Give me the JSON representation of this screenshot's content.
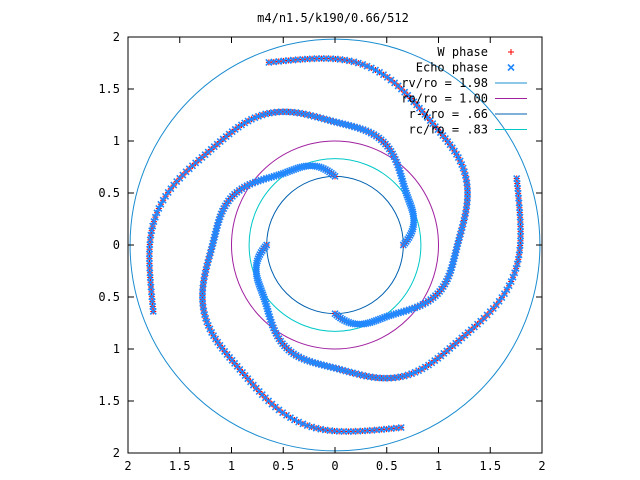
{
  "chart_data": {
    "type": "scatter",
    "title": "m4/n1.5/k190/0.66/512",
    "xlim": [
      -2,
      2
    ],
    "ylim": [
      -2,
      2
    ],
    "xticks": [
      {
        "v": -2,
        "label": "2"
      },
      {
        "v": -1.5,
        "label": "1.5"
      },
      {
        "v": -1,
        "label": "1"
      },
      {
        "v": -0.5,
        "label": "0.5"
      },
      {
        "v": 0,
        "label": "0"
      },
      {
        "v": 0.5,
        "label": "0.5"
      },
      {
        "v": 1,
        "label": "1"
      },
      {
        "v": 1.5,
        "label": "1.5"
      },
      {
        "v": 2,
        "label": "2"
      }
    ],
    "yticks": [
      {
        "v": 2,
        "label": "2"
      },
      {
        "v": 1.5,
        "label": "1.5"
      },
      {
        "v": 1,
        "label": "1"
      },
      {
        "v": 0.5,
        "label": "0.5"
      },
      {
        "v": 0,
        "label": "0"
      },
      {
        "v": -0.5,
        "label": "0.5"
      },
      {
        "v": -1,
        "label": "1"
      },
      {
        "v": -1.5,
        "label": "1.5"
      },
      {
        "v": -2,
        "label": "2"
      }
    ],
    "grid": false,
    "legend_position": "top-right",
    "legend": [
      {
        "label": "W phase",
        "color": "#ff0000",
        "symbol": "plus"
      },
      {
        "label": "Echo phase",
        "color": "#2288ff",
        "symbol": "cross"
      },
      {
        "label": "rv/ro = 1.98",
        "color": "#1a8cd0",
        "symbol": "line"
      },
      {
        "label": "ro/ro = 1.00",
        "color": "#a020a0",
        "symbol": "line"
      },
      {
        "label": "r-/ro = .66",
        "color": "#0060b0",
        "symbol": "line"
      },
      {
        "label": "rc/ro = .83",
        "color": "#00c8c8",
        "symbol": "line"
      }
    ],
    "circles": [
      {
        "name": "rv/ro = 1.98",
        "r": 1.98,
        "color": "#1a8cd0"
      },
      {
        "name": "ro/ro = 1.00",
        "r": 1.0,
        "color": "#a020a0"
      },
      {
        "name": "r-/ro = .66",
        "r": 0.66,
        "color": "#0060b0"
      },
      {
        "name": "rc/ro = .83",
        "r": 0.83,
        "color": "#00c8c8"
      }
    ],
    "series": [
      {
        "name": "W phase",
        "color": "#ff0000",
        "arms": [
          {
            "r0": 0.66,
            "theta0_deg": 90,
            "k": 0.095,
            "theta_span_deg": 200,
            "wobble": 0.035
          },
          {
            "r0": 0.66,
            "theta0_deg": 0,
            "k": 0.095,
            "theta_span_deg": 200,
            "wobble": 0.035
          },
          {
            "r0": 0.66,
            "theta0_deg": 270,
            "k": 0.095,
            "theta_span_deg": 200,
            "wobble": 0.035
          },
          {
            "r0": 0.66,
            "theta0_deg": 180,
            "k": 0.095,
            "theta_span_deg": 200,
            "wobble": 0.035
          }
        ]
      },
      {
        "name": "Echo phase",
        "color": "#2288ff",
        "arms": [
          {
            "r0": 0.66,
            "theta0_deg": 90,
            "k": 0.095,
            "theta_span_deg": 200,
            "wobble": 0.035
          },
          {
            "r0": 0.66,
            "theta0_deg": 0,
            "k": 0.095,
            "theta_span_deg": 200,
            "wobble": 0.035
          },
          {
            "r0": 0.66,
            "theta0_deg": 270,
            "k": 0.095,
            "theta_span_deg": 200,
            "wobble": 0.035
          },
          {
            "r0": 0.66,
            "theta0_deg": 180,
            "k": 0.095,
            "theta_span_deg": 200,
            "wobble": 0.035
          }
        ]
      }
    ]
  }
}
